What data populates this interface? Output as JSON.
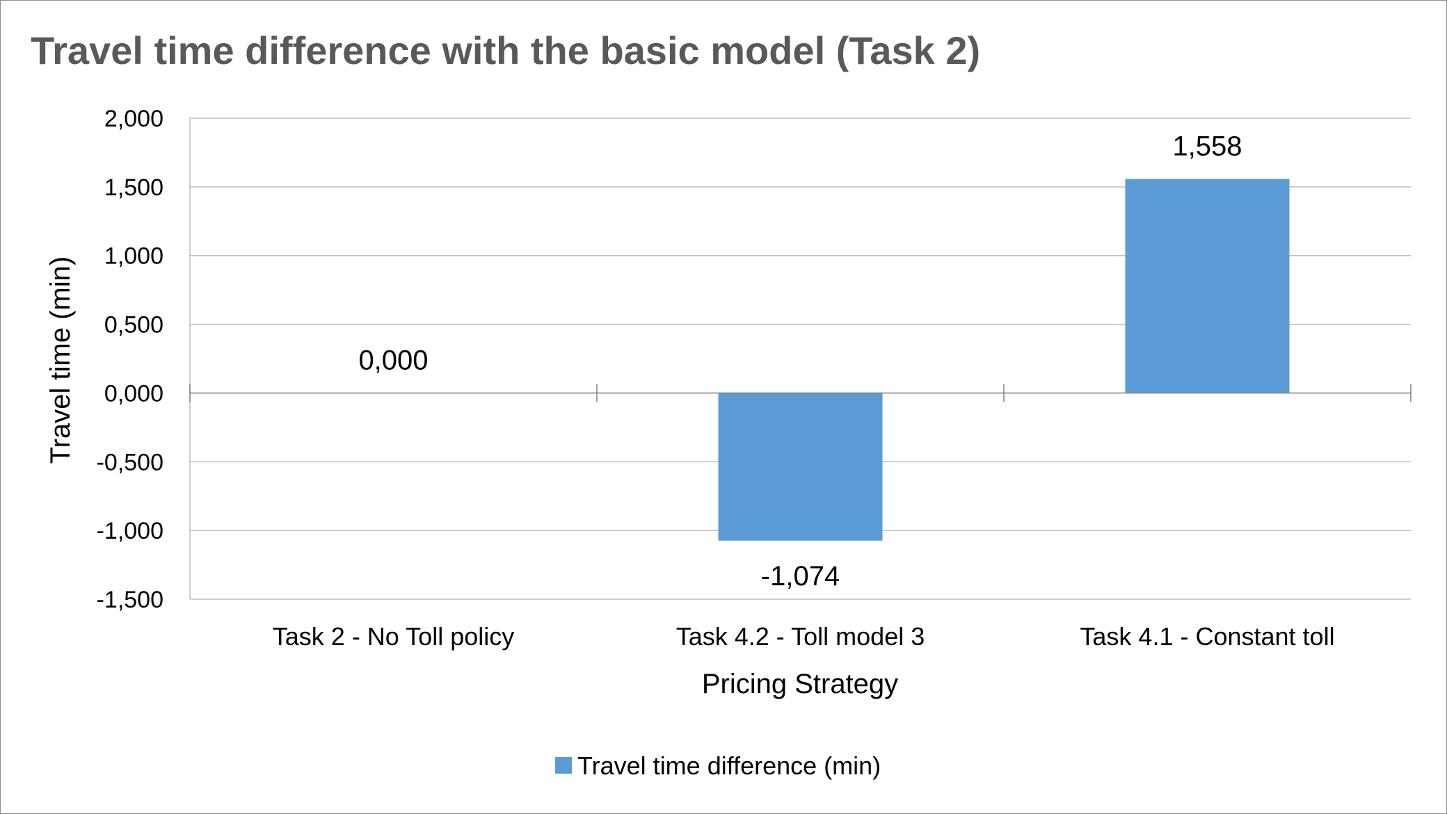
{
  "chart_data": {
    "type": "bar",
    "title": "Travel time difference with the basic model (Task 2)",
    "xlabel": "Pricing Strategy",
    "ylabel": "Travel time (min)",
    "categories": [
      "Task 2 - No Toll policy",
      "Task 4.2 - Toll model 3",
      "Task 4.1 - Constant toll"
    ],
    "series": [
      {
        "name": "Travel time difference (min)",
        "values": [
          0.0,
          -1.074,
          1.558
        ],
        "labels": [
          "0,000",
          "-1,074",
          "1,558"
        ],
        "color": "#5b9bd5"
      }
    ],
    "ylim": [
      -1.5,
      2.0
    ],
    "yticks": [
      {
        "value": 2.0,
        "label": "2,000"
      },
      {
        "value": 1.5,
        "label": "1,500"
      },
      {
        "value": 1.0,
        "label": "1,000"
      },
      {
        "value": 0.5,
        "label": "0,500"
      },
      {
        "value": 0.0,
        "label": "0,000"
      },
      {
        "value": -0.5,
        "label": "-0,500"
      },
      {
        "value": -1.0,
        "label": "-1,000"
      },
      {
        "value": -1.5,
        "label": "-1,500"
      }
    ],
    "grid": true,
    "legend_position": "bottom"
  }
}
